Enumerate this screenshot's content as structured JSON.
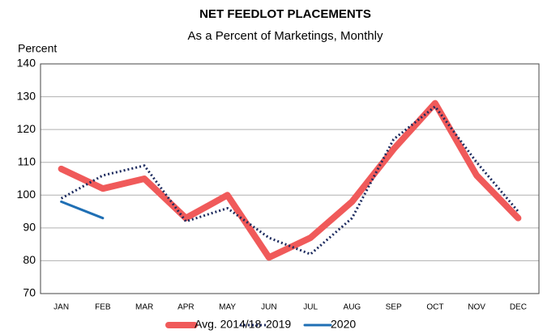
{
  "chart_data": {
    "type": "line",
    "title": "NET FEEDLOT PLACEMENTS",
    "subtitle": "As a Percent of Marketings, Monthly",
    "y_label": "Percent",
    "categories": [
      "JAN",
      "FEB",
      "MAR",
      "APR",
      "MAY",
      "JUN",
      "JUL",
      "AUG",
      "SEP",
      "OCT",
      "NOV",
      "DEC"
    ],
    "series": [
      {
        "name": "Avg. 2014/18",
        "color": "#f05a5a",
        "values": [
          108,
          102,
          105,
          93,
          100,
          81,
          87,
          98,
          114,
          128,
          106,
          93
        ]
      },
      {
        "name": "2019",
        "color": "#1c2a5e",
        "values": [
          99,
          106,
          109,
          92,
          96,
          87,
          82,
          93,
          117,
          127,
          110,
          95
        ]
      },
      {
        "name": "2020",
        "color": "#1f6fb4",
        "values": [
          98,
          93,
          null,
          null,
          null,
          null,
          null,
          null,
          null,
          null,
          null,
          null
        ]
      }
    ],
    "ylim": [
      70,
      140
    ],
    "yticks": [
      70,
      80,
      90,
      100,
      110,
      120,
      130,
      140
    ],
    "grid": true,
    "legend": "bottom"
  }
}
